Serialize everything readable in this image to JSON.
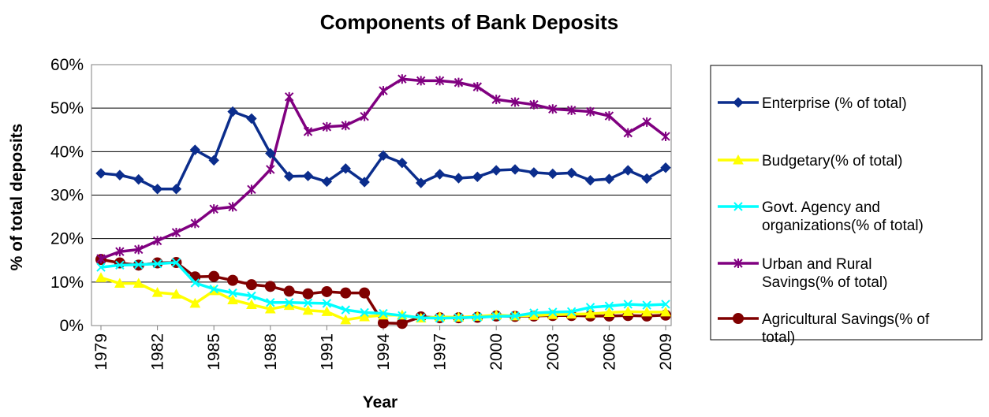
{
  "chart_data": {
    "type": "line",
    "title": "Components of Bank Deposits",
    "xlabel": "Year",
    "ylabel": "% of total deposits",
    "ylim": [
      0,
      60
    ],
    "yticks": [
      "0%",
      "10%",
      "20%",
      "30%",
      "40%",
      "50%",
      "60%"
    ],
    "grid": "horizontal",
    "legend_position": "right",
    "x": [
      1979,
      1980,
      1981,
      1982,
      1983,
      1984,
      1985,
      1986,
      1987,
      1988,
      1989,
      1990,
      1991,
      1992,
      1993,
      1994,
      1995,
      1996,
      1997,
      1998,
      1999,
      2000,
      2001,
      2002,
      2003,
      2004,
      2005,
      2006,
      2007,
      2008,
      2009
    ],
    "xtick_labels": [
      "1979",
      "1982",
      "1985",
      "1988",
      "1991",
      "1994",
      "1997",
      "2000",
      "2003",
      "2006",
      "2009"
    ],
    "series": [
      {
        "name": "Enterprise (% of total)",
        "color": "#0B2D8C",
        "marker": "diamond",
        "values": [
          35.0,
          34.6,
          33.6,
          31.4,
          31.4,
          40.4,
          38.0,
          49.2,
          47.6,
          39.6,
          34.3,
          34.4,
          33.1,
          36.1,
          33.0,
          39.1,
          37.4,
          32.8,
          34.8,
          33.9,
          34.2,
          35.7,
          35.9,
          35.2,
          34.9,
          35.1,
          33.4,
          33.7,
          35.7,
          33.8,
          36.3
        ]
      },
      {
        "name": "Budgetary(% of total)",
        "color": "#FFFF00",
        "marker": "triangle",
        "values": [
          11.0,
          9.7,
          9.7,
          7.6,
          7.2,
          5.1,
          8.0,
          5.9,
          4.8,
          3.8,
          4.6,
          3.5,
          3.2,
          1.3,
          2.0,
          2.4,
          2.4,
          1.7,
          2.0,
          1.9,
          2.1,
          2.4,
          2.2,
          2.3,
          2.5,
          2.6,
          2.7,
          3.0,
          3.2,
          3.1,
          3.1
        ]
      },
      {
        "name": "Govt. Agency and organizations(% of total)",
        "color": "#00FFFF",
        "marker": "x",
        "values": [
          13.4,
          13.9,
          14.0,
          14.2,
          14.5,
          9.8,
          8.4,
          7.5,
          6.8,
          5.3,
          5.3,
          5.2,
          5.1,
          3.6,
          3.0,
          2.8,
          2.3,
          1.8,
          1.7,
          1.8,
          1.9,
          2.1,
          2.2,
          2.9,
          3.1,
          3.2,
          4.2,
          4.5,
          4.9,
          4.7,
          4.9
        ]
      },
      {
        "name": "Urban and Rural Savings(% of total)",
        "color": "#800080",
        "marker": "star",
        "values": [
          15.4,
          17.0,
          17.5,
          19.5,
          21.4,
          23.5,
          26.8,
          27.3,
          31.3,
          35.9,
          52.6,
          44.6,
          45.7,
          46.0,
          48.1,
          54.0,
          56.7,
          56.3,
          56.3,
          55.9,
          54.9,
          52.0,
          51.4,
          50.8,
          49.8,
          49.5,
          49.2,
          48.2,
          44.3,
          46.8,
          43.5
        ]
      },
      {
        "name": "Agricultural Savings(% of total)",
        "color": "#800000",
        "marker": "circle",
        "values": [
          15.2,
          14.4,
          13.9,
          14.4,
          14.5,
          11.2,
          11.3,
          10.4,
          9.4,
          9.0,
          7.9,
          7.3,
          7.8,
          7.5,
          7.5,
          0.6,
          0.5,
          2.0,
          1.8,
          1.8,
          1.9,
          2.2,
          2.1,
          2.2,
          2.3,
          2.3,
          2.2,
          2.2,
          2.3,
          2.2,
          2.4
        ]
      }
    ]
  }
}
